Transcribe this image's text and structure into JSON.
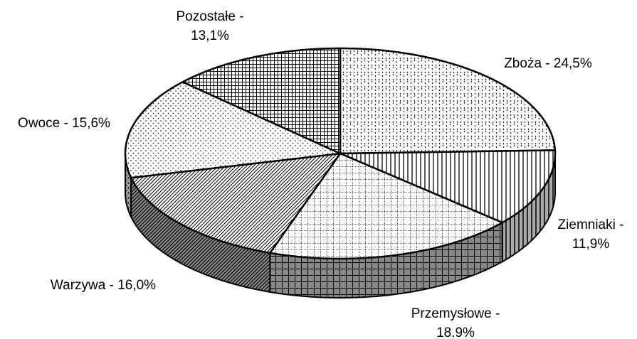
{
  "chart_data": {
    "type": "pie3d",
    "values": [
      24.5,
      11.9,
      18.9,
      16.0,
      15.6,
      13.1
    ],
    "value_labels": [
      [
        "Zboża - 24,5%"
      ],
      [
        "Ziemniaki -",
        "11,9%"
      ],
      [
        "Przemysłowe -",
        "18.9%"
      ],
      [
        "Warzywa - 16,0%"
      ],
      [
        "Owoce - 15,6%"
      ],
      [
        "Pozostałe -",
        "13,1%"
      ]
    ]
  }
}
